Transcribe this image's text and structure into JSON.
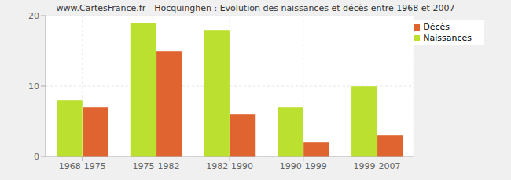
{
  "chart_data": {
    "type": "bar",
    "title": "www.CartesFrance.fr - Hocquinghen : Evolution des naissances et décès entre 1968 et 2007",
    "categories": [
      "1968-1975",
      "1975-1982",
      "1982-1990",
      "1990-1999",
      "1999-2007"
    ],
    "series": [
      {
        "name": "Naissances",
        "color": "#bce030",
        "values": [
          8,
          19,
          18,
          7,
          10
        ]
      },
      {
        "name": "Décès",
        "color": "#e0642f",
        "values": [
          7,
          15,
          6,
          2,
          3
        ]
      }
    ],
    "ylim": [
      0,
      20
    ],
    "yticks": [
      0,
      10,
      20
    ],
    "grid": true,
    "legend": "top-right"
  }
}
